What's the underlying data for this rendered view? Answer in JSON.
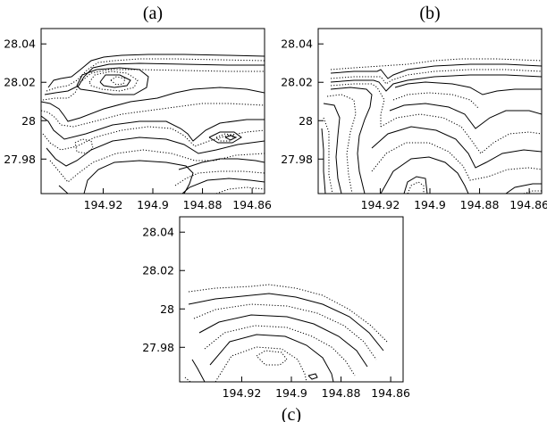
{
  "chart_data": [
    {
      "type": "contour",
      "title": "(a)",
      "xticks": [
        194.92,
        194.9,
        194.88,
        194.86
      ],
      "xtick_labels": [
        "194.92",
        "194.9",
        "194.88",
        "194.86"
      ],
      "yticks": [
        28.04,
        28.02,
        28.0,
        27.98
      ],
      "ytick_labels": [
        "28.04",
        "28.02",
        "28",
        "27.98"
      ],
      "xlim": [
        194.945,
        194.855
      ],
      "ylim": [
        27.962,
        28.048
      ],
      "line_styles": [
        "solid",
        "dotted"
      ],
      "grid": false
    },
    {
      "type": "contour",
      "title": "(b)",
      "xticks": [
        194.92,
        194.9,
        194.88,
        194.86
      ],
      "xtick_labels": [
        "194.92",
        "194.9",
        "194.88",
        "194.86"
      ],
      "yticks": [
        28.04,
        28.02,
        28.0,
        27.98
      ],
      "ytick_labels": [
        "28.04",
        "28.02",
        "28",
        "27.98"
      ],
      "xlim": [
        194.945,
        194.855
      ],
      "ylim": [
        27.962,
        28.048
      ],
      "line_styles": [
        "solid",
        "dotted"
      ],
      "grid": false
    },
    {
      "type": "contour",
      "title": "(c)",
      "xticks": [
        194.92,
        194.9,
        194.88,
        194.86
      ],
      "xtick_labels": [
        "194.92",
        "194.9",
        "194.88",
        "194.86"
      ],
      "yticks": [
        28.04,
        28.02,
        28.0,
        27.98
      ],
      "ytick_labels": [
        "28.04",
        "28.02",
        "28",
        "27.98"
      ],
      "xlim": [
        194.945,
        194.855
      ],
      "ylim": [
        27.962,
        28.048
      ],
      "line_styles": [
        "solid",
        "dotted"
      ],
      "grid": false
    }
  ]
}
